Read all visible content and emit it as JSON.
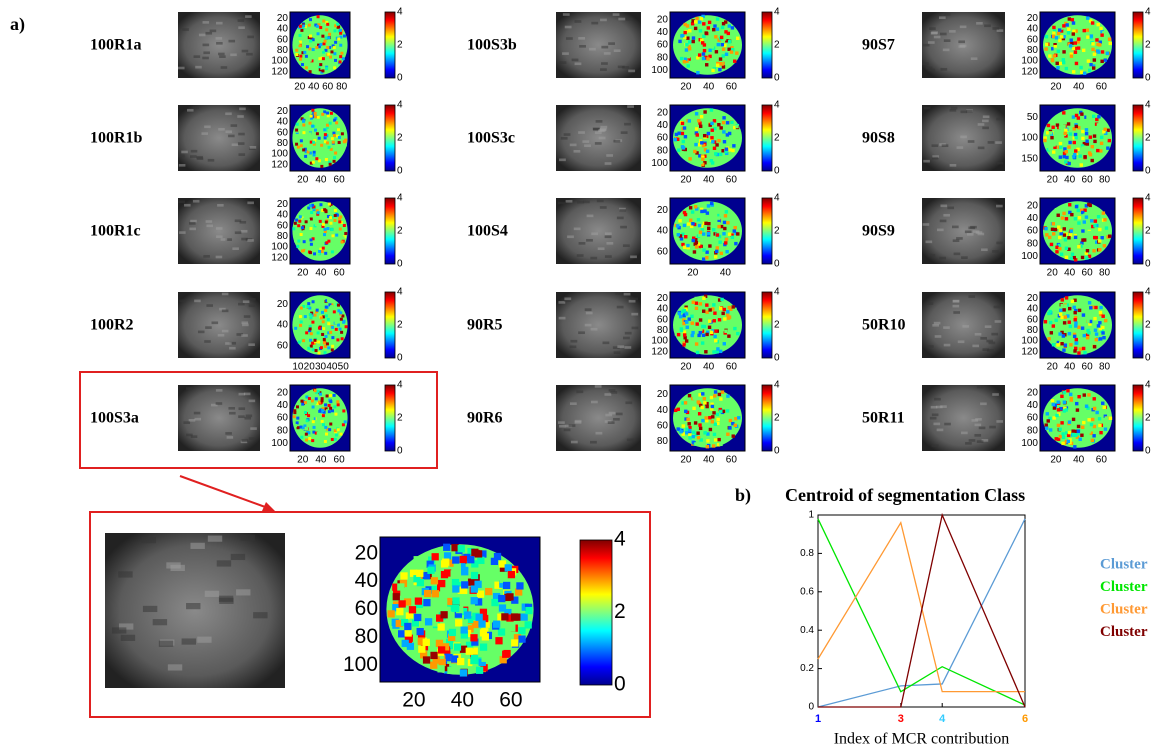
{
  "panel_a": {
    "label": "a)",
    "colorbar_ticks": [
      4,
      2,
      0
    ],
    "samples": [
      {
        "name": "100R1a",
        "yticks": [
          20,
          40,
          60,
          80,
          100,
          120
        ],
        "xticks": [
          20,
          40,
          60,
          80
        ]
      },
      {
        "name": "100R1b",
        "yticks": [
          20,
          40,
          60,
          80,
          100,
          120
        ],
        "xticks": [
          20,
          40,
          60
        ]
      },
      {
        "name": "100R1c",
        "yticks": [
          20,
          40,
          60,
          80,
          100,
          120
        ],
        "xticks": [
          20,
          40,
          60
        ]
      },
      {
        "name": "100R2",
        "yticks": [
          20,
          40,
          60
        ],
        "xticks": [
          10,
          20,
          30,
          40,
          50
        ]
      },
      {
        "name": "100S3a",
        "yticks": [
          20,
          40,
          60,
          80,
          100
        ],
        "xticks": [
          20,
          40,
          60
        ]
      },
      {
        "name": "100S3b",
        "yticks": [
          20,
          40,
          60,
          80,
          100
        ],
        "xticks": [
          20,
          40,
          60
        ]
      },
      {
        "name": "100S3c",
        "yticks": [
          20,
          40,
          60,
          80,
          100
        ],
        "xticks": [
          20,
          40,
          60
        ]
      },
      {
        "name": "100S4",
        "yticks": [
          20,
          40,
          60
        ],
        "xticks": [
          20,
          40
        ]
      },
      {
        "name": "90R5",
        "yticks": [
          20,
          40,
          60,
          80,
          100,
          120
        ],
        "xticks": [
          20,
          40,
          60
        ]
      },
      {
        "name": "90R6",
        "yticks": [
          20,
          40,
          60,
          80
        ],
        "xticks": [
          20,
          40,
          60
        ]
      },
      {
        "name": "90S7",
        "yticks": [
          20,
          40,
          60,
          80,
          100,
          120
        ],
        "xticks": [
          20,
          40,
          60
        ]
      },
      {
        "name": "90S8",
        "yticks": [
          50,
          100,
          150
        ],
        "xticks": [
          20,
          40,
          60,
          80
        ]
      },
      {
        "name": "90S9",
        "yticks": [
          20,
          40,
          60,
          80,
          100
        ],
        "xticks": [
          20,
          40,
          60,
          80
        ]
      },
      {
        "name": "50R10",
        "yticks": [
          20,
          40,
          60,
          80,
          100,
          120
        ],
        "xticks": [
          20,
          40,
          60,
          80
        ]
      },
      {
        "name": "50R11",
        "yticks": [
          20,
          40,
          60,
          80,
          100
        ],
        "xticks": [
          20,
          40,
          60
        ]
      }
    ]
  },
  "chart_data": {
    "type": "line",
    "label": "b)",
    "title": "Centroid of segmentation Class",
    "xlabel": "Index of MCR contribution",
    "x": [
      1,
      3,
      4,
      6
    ],
    "xlim": [
      1,
      6
    ],
    "xticks": [
      1,
      3,
      4,
      6
    ],
    "xtick_colors": [
      "#0000ff",
      "#ff0000",
      "#33ccff",
      "#ff9900"
    ],
    "ylim": [
      0,
      1
    ],
    "yticks": [
      0,
      0.2,
      0.4,
      0.6,
      0.8,
      1
    ],
    "series": [
      {
        "name": "Cluster",
        "color": "#5b9bd5",
        "values": [
          0,
          0.11,
          0.12,
          0.98
        ]
      },
      {
        "name": "Cluster",
        "color": "#00e600",
        "values": [
          0.98,
          0.08,
          0.21,
          0.01
        ]
      },
      {
        "name": "Cluster",
        "color": "#ff9933",
        "values": [
          0.25,
          0.96,
          0.08,
          0.08
        ]
      },
      {
        "name": "Cluster",
        "color": "#7f0000",
        "values": [
          0,
          0,
          1,
          0
        ]
      }
    ]
  }
}
